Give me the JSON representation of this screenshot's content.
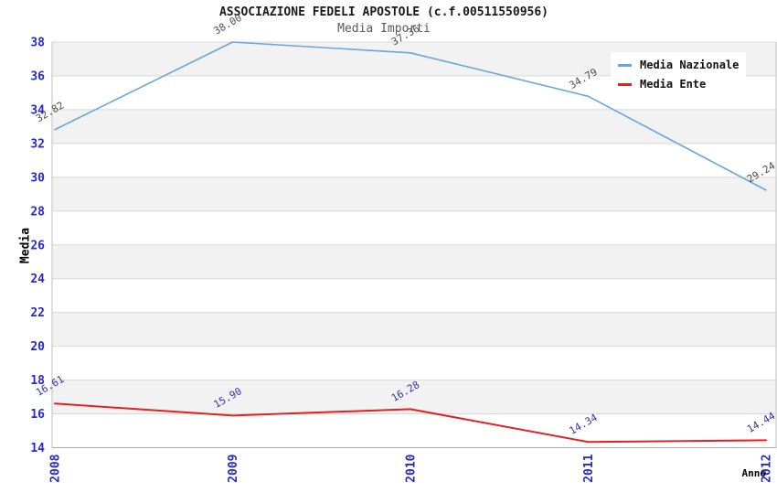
{
  "title": "ASSOCIAZIONE FEDELI APOSTOLE (c.f.00511550956)",
  "subtitle": "Media Importi",
  "legend": {
    "items": [
      {
        "label": "Media Nazionale",
        "color": "#6aa5dd"
      },
      {
        "label": "Media Ente",
        "color": "#e02222"
      }
    ]
  },
  "chart_data": {
    "type": "line",
    "title": "ASSOCIAZIONE FEDELI APOSTOLE (c.f.00511550956)",
    "subtitle": "Media Importi",
    "xlabel": "Anno",
    "ylabel": "Media",
    "x": [
      2008,
      2009,
      2010,
      2011,
      2012
    ],
    "series": [
      {
        "name": "Media Nazionale",
        "color": "#6aa5dd",
        "label_color": "#4d4d4d",
        "line_width": 1.6,
        "values": [
          32.82,
          38.0,
          37.36,
          34.79,
          29.24
        ]
      },
      {
        "name": "Media Ente",
        "color": "#e02222",
        "label_color": "#3333aa",
        "line_width": 2,
        "values": [
          16.61,
          15.9,
          16.28,
          14.34,
          14.44
        ]
      }
    ],
    "ylim": [
      14,
      38
    ],
    "ytick_step": 2,
    "grid": true,
    "legend_position": "top-right",
    "band_colors": [
      "#f2f2f2",
      "#ffffff"
    ],
    "grid_color": "#d8d8d8",
    "axis_border_color": "#bdbdbd",
    "tick_label_color": "#2828cc",
    "value_label_decimals": 2
  }
}
